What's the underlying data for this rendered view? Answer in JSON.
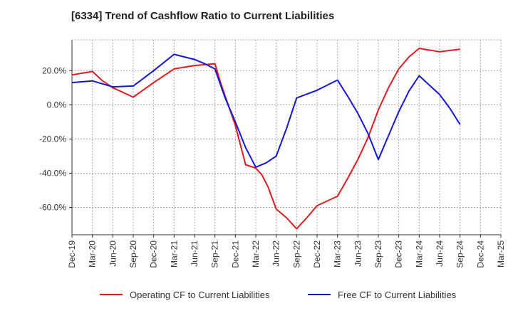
{
  "chart_data": {
    "type": "line",
    "title": "[6334]  Trend of Cashflow Ratio to Current Liabilities",
    "xlabel": "",
    "ylabel": "",
    "ylim": [
      -76,
      38
    ],
    "y_ticks": [
      20,
      0,
      -20,
      -40,
      -60
    ],
    "y_tick_labels": [
      "20.0%",
      "0.0%",
      "-20.0%",
      "-40.0%",
      "-60.0%"
    ],
    "x_tick_labels": [
      "Dec-19",
      "Mar-20",
      "Jun-20",
      "Sep-20",
      "Dec-20",
      "Mar-21",
      "Jun-21",
      "Sep-21",
      "Dec-21",
      "Mar-22",
      "Jun-22",
      "Sep-22",
      "Dec-22",
      "Mar-23",
      "Jun-23",
      "Sep-23",
      "Dec-23",
      "Mar-24",
      "Jun-24",
      "Sep-24",
      "Dec-24",
      "Mar-25"
    ],
    "grid": true,
    "legend_position": "bottom",
    "series": [
      {
        "name": "Operating CF to Current Liabilities",
        "color": "#e31a1c",
        "x": [
          0,
          0.5,
          1,
          1.5,
          2,
          3,
          4,
          5,
          6,
          6.5,
          7,
          7.3,
          8,
          8.5,
          9,
          9.3,
          9.6,
          10,
          10.5,
          11,
          11.5,
          12,
          13,
          13.5,
          14,
          14.5,
          15,
          15.5,
          16,
          16.5,
          17,
          18,
          19
        ],
        "y": [
          17.5,
          18.5,
          19.5,
          14,
          10,
          4.5,
          13,
          21,
          23,
          23.5,
          24,
          12,
          -12,
          -35,
          -37,
          -41,
          -48,
          -61,
          -66,
          -72.5,
          -66,
          -59,
          -53.5,
          -43,
          -32,
          -19,
          -3,
          10,
          21,
          28,
          33,
          31,
          32.5
        ]
      },
      {
        "name": "Free CF to Current Liabilities",
        "color": "#1515d8",
        "x": [
          0,
          1,
          2,
          3,
          4,
          5,
          6,
          6.5,
          7,
          7.5,
          8,
          8.5,
          9,
          9.5,
          10,
          10.5,
          11,
          12,
          13,
          13.5,
          14,
          14.5,
          15,
          15.5,
          16,
          16.5,
          17,
          18,
          18.5,
          19
        ],
        "y": [
          13,
          14,
          10.5,
          11,
          20,
          29.5,
          26.5,
          24,
          21,
          4,
          -10,
          -25,
          -36.5,
          -34,
          -30,
          -14,
          4,
          8.5,
          14.5,
          5,
          -5,
          -17,
          -32,
          -18,
          -4,
          8,
          17,
          6,
          -2,
          -11.5
        ]
      }
    ]
  }
}
